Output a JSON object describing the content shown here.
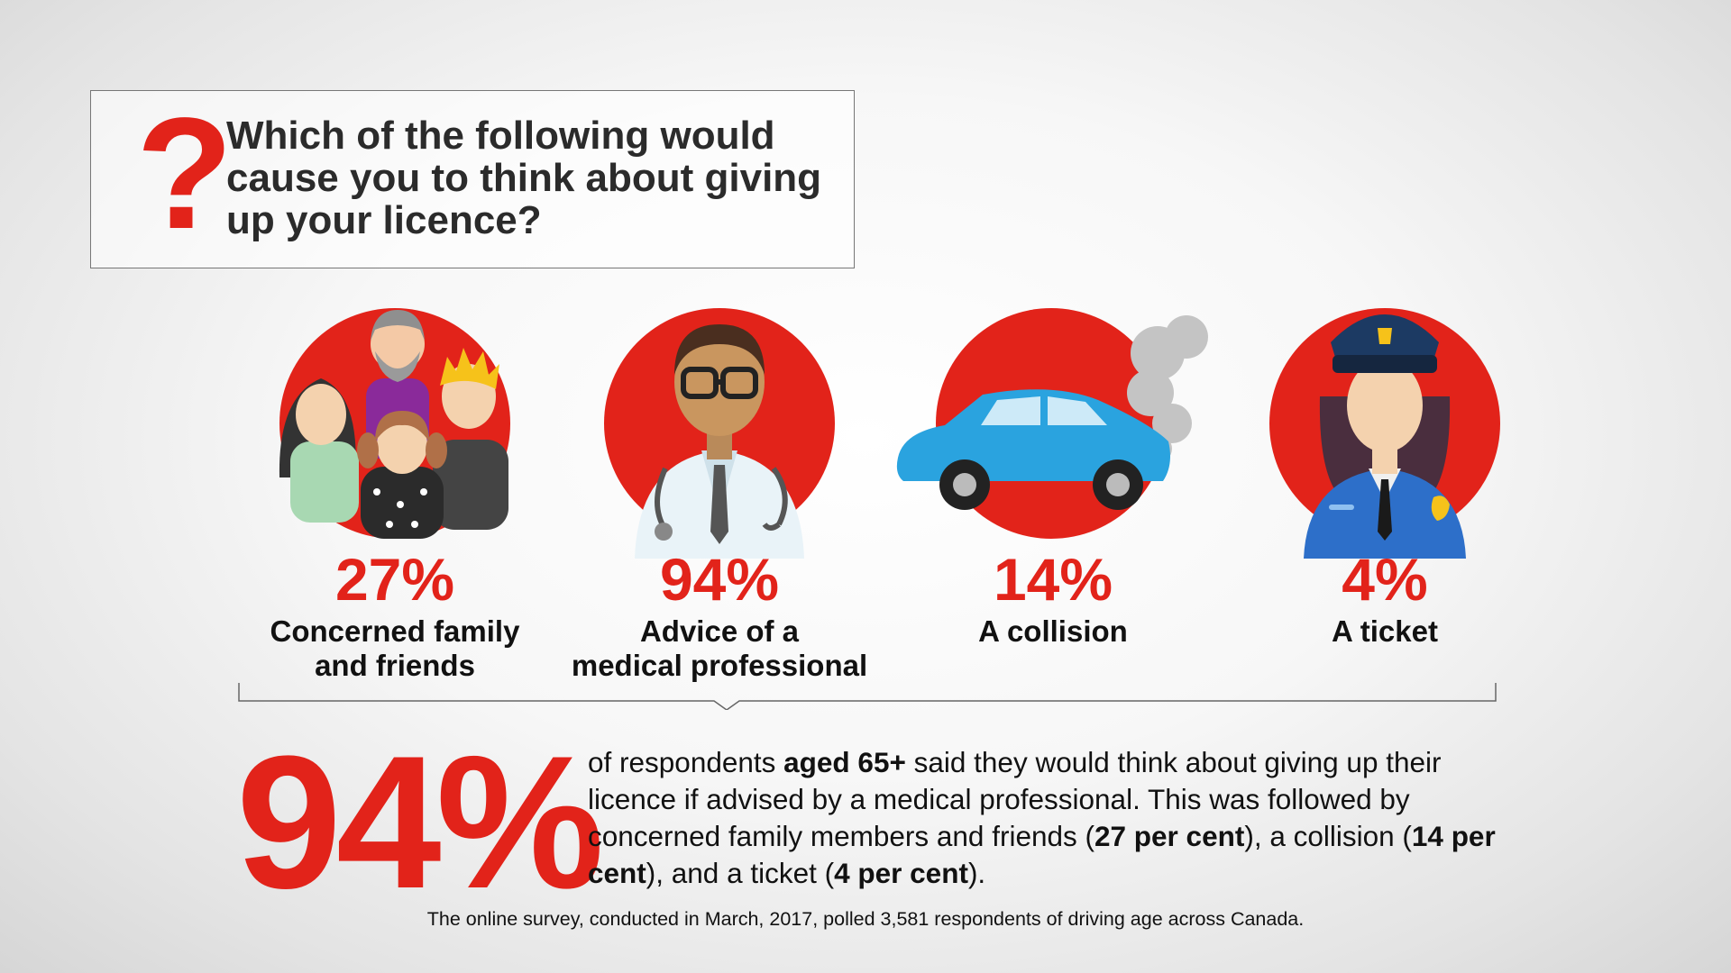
{
  "question": {
    "mark": "?",
    "text": "Which of the following would cause you to think about giving up your licence?"
  },
  "items": [
    {
      "percent": "27%",
      "label_line1": "Concerned family",
      "label_line2": "and friends",
      "icon": "family-icon"
    },
    {
      "percent": "94%",
      "label_line1": "Advice of a",
      "label_line2": "medical professional",
      "icon": "doctor-icon"
    },
    {
      "percent": "14%",
      "label_line1": "A collision",
      "label_line2": "",
      "icon": "car-smoke-icon"
    },
    {
      "percent": "4%",
      "label_line1": "A ticket",
      "label_line2": "",
      "icon": "police-officer-icon"
    }
  ],
  "summary": {
    "big_percent": "94%",
    "t1": "of respondents ",
    "b1": "aged 65+",
    "t2": " said they would think about giving up their licence if advised by a medical professional. This was followed by concerned family members and friends (",
    "b2": "27 per cent",
    "t3": "), a collision (",
    "b3": "14 per cent",
    "t4": "), and a ticket (",
    "b4": "4 per cent",
    "t5": ")."
  },
  "footnote": "The online survey, conducted in March, 2017, polled 3,581 respondents of driving age across Canada.",
  "colors": {
    "accent": "#e2231a",
    "car": "#2aa3df",
    "smoke": "#c4c4c4",
    "police": "#1c3a63"
  }
}
